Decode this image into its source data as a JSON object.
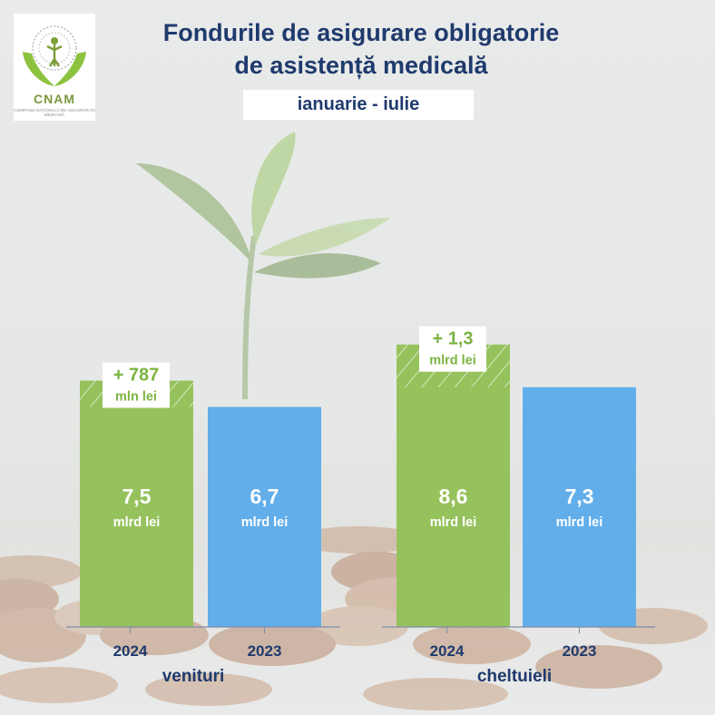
{
  "title_line1": "Fondurile de asigurare obligatorie",
  "title_line2": "de asistență medicală",
  "period": "ianuarie - iulie",
  "logo": {
    "text": "CNAM",
    "subtext": "COMPANIA NAȚIONALĂ DE ASIGURĂRI ÎN MEDICINĂ"
  },
  "colors": {
    "green": "#96c25d",
    "blue": "#62aeea",
    "navy": "#1f3a6d",
    "axis": "#7e8da8"
  },
  "chart_data": [
    {
      "type": "bar",
      "group_label": "venituri",
      "categories": [
        "2024",
        "2023"
      ],
      "values": [
        7.5,
        6.7
      ],
      "value_labels": [
        "7,5",
        "6,7"
      ],
      "unit_label": "mlrd lei",
      "colors": [
        "#96c25d",
        "#62aeea"
      ],
      "difference": {
        "value": "+ 787",
        "unit": "mln lei"
      }
    },
    {
      "type": "bar",
      "group_label": "cheltuieli",
      "categories": [
        "2024",
        "2023"
      ],
      "values": [
        8.6,
        7.3
      ],
      "value_labels": [
        "8,6",
        "7,3"
      ],
      "unit_label": "mlrd lei",
      "colors": [
        "#96c25d",
        "#62aeea"
      ],
      "difference": {
        "value": "+ 1,3",
        "unit": "mlrd lei"
      }
    }
  ]
}
